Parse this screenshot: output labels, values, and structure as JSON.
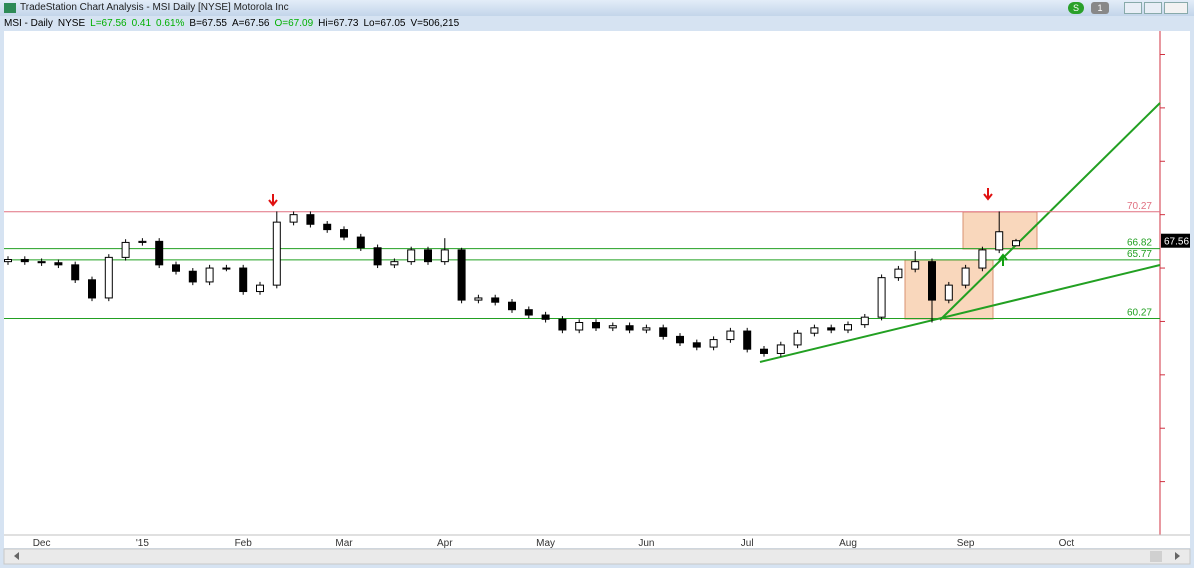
{
  "window": {
    "title": "TradeStation Chart Analysis - MSI Daily [NYSE] Motorola Inc",
    "buttons": [
      "S",
      "1"
    ]
  },
  "header": [
    {
      "text": "MSI - Daily",
      "color": "#000000"
    },
    {
      "text": "NYSE",
      "color": "#000000"
    },
    {
      "text": "L=67.56",
      "color": "#00b000"
    },
    {
      "text": "0.41",
      "color": "#00b000"
    },
    {
      "text": "0.61%",
      "color": "#00b000"
    },
    {
      "text": "B=67.55",
      "color": "#000000"
    },
    {
      "text": "A=67.56",
      "color": "#000000"
    },
    {
      "text": "O=67.09",
      "color": "#00b000"
    },
    {
      "text": "Hi=67.73",
      "color": "#000000"
    },
    {
      "text": "Lo=67.05",
      "color": "#000000"
    },
    {
      "text": "V=506,215",
      "color": "#000000"
    }
  ],
  "chart_data": {
    "type": "candlestick",
    "categories": [
      null,
      null,
      "Dec",
      null,
      null,
      null,
      null,
      null,
      "'15",
      null,
      null,
      null,
      null,
      null,
      "Feb",
      null,
      null,
      null,
      null,
      null,
      "Mar",
      null,
      null,
      null,
      null,
      null,
      "Apr",
      null,
      null,
      null,
      null,
      null,
      "May",
      null,
      null,
      null,
      null,
      null,
      "Jun",
      null,
      null,
      null,
      null,
      null,
      "Jul",
      null,
      null,
      null,
      null,
      null,
      "Aug",
      null,
      null,
      null,
      null,
      null,
      null,
      "Sep",
      null,
      null,
      null,
      null,
      null,
      "Oct"
    ],
    "open": [
      65.6,
      65.8,
      65.6,
      65.5,
      65.3,
      63.9,
      62.2,
      66.0,
      67.4,
      67.5,
      65.3,
      64.7,
      63.7,
      65.0,
      65.0,
      62.8,
      63.4,
      69.3,
      70.0,
      69.1,
      68.6,
      67.9,
      66.9,
      65.3,
      65.6,
      66.7,
      65.6,
      66.7,
      62.0,
      62.2,
      61.8,
      61.1,
      60.6,
      60.2,
      59.2,
      59.9,
      59.4,
      59.6,
      59.2,
      59.4,
      58.6,
      58.0,
      57.6,
      58.3,
      59.1,
      57.4,
      57.0,
      57.8,
      58.9,
      59.4,
      59.2,
      59.7,
      60.4,
      64.1,
      64.9,
      65.6,
      62.0,
      63.4,
      65.0,
      66.7,
      67.09,
      null,
      null,
      null
    ],
    "high": [
      66.1,
      66.1,
      65.9,
      65.8,
      65.6,
      64.2,
      66.3,
      67.7,
      67.8,
      67.8,
      65.6,
      65.0,
      65.3,
      65.3,
      65.3,
      63.7,
      70.3,
      70.3,
      70.3,
      69.4,
      68.9,
      68.2,
      67.2,
      65.9,
      67.0,
      67.0,
      67.8,
      66.9,
      62.5,
      62.5,
      62.1,
      61.4,
      60.9,
      60.5,
      60.2,
      60.2,
      59.9,
      59.9,
      59.7,
      59.7,
      58.9,
      58.3,
      58.6,
      59.4,
      59.4,
      57.7,
      58.1,
      59.2,
      59.7,
      59.7,
      60.0,
      60.7,
      64.4,
      65.2,
      66.6,
      65.9,
      63.7,
      65.3,
      67.0,
      70.3,
      67.73,
      null,
      null,
      null
    ],
    "low": [
      65.3,
      65.3,
      65.2,
      65.0,
      63.6,
      61.9,
      61.9,
      65.7,
      67.1,
      65.0,
      64.4,
      63.4,
      63.4,
      64.7,
      62.5,
      62.5,
      63.1,
      69.0,
      68.8,
      68.3,
      67.6,
      66.6,
      65.0,
      65.0,
      65.3,
      65.3,
      65.3,
      61.7,
      61.7,
      61.5,
      60.8,
      60.3,
      59.9,
      58.9,
      58.9,
      59.1,
      59.1,
      58.9,
      58.9,
      58.3,
      57.7,
      57.3,
      57.3,
      58.0,
      57.1,
      56.7,
      56.7,
      57.5,
      58.6,
      58.9,
      58.9,
      59.4,
      60.1,
      63.8,
      64.6,
      59.9,
      61.7,
      63.1,
      64.7,
      66.4,
      67.05,
      null,
      null,
      null
    ],
    "close": [
      65.8,
      65.6,
      65.5,
      65.3,
      63.9,
      62.2,
      66.0,
      67.4,
      67.5,
      65.3,
      64.7,
      63.7,
      65.0,
      65.0,
      62.8,
      63.4,
      69.3,
      70.0,
      69.1,
      68.6,
      67.9,
      66.9,
      65.3,
      65.6,
      66.7,
      65.6,
      66.7,
      62.0,
      62.2,
      61.8,
      61.1,
      60.6,
      60.2,
      59.2,
      59.9,
      59.4,
      59.6,
      59.2,
      59.4,
      58.6,
      58.0,
      57.6,
      58.3,
      59.1,
      57.4,
      57.0,
      57.8,
      58.9,
      59.4,
      59.2,
      59.7,
      60.4,
      64.1,
      64.9,
      65.6,
      62.0,
      63.4,
      65.0,
      66.7,
      68.4,
      67.56,
      null,
      null,
      null
    ],
    "last_price": 67.56,
    "levels": [
      70.27,
      66.82,
      65.77,
      60.27
    ],
    "level_colors": [
      "#e07080",
      "#22a022",
      "#22a022",
      "#22a022"
    ],
    "ylim": [
      40,
      87.2
    ],
    "yticks": [
      45,
      50,
      55,
      60,
      65,
      70,
      75,
      80,
      85
    ]
  }
}
